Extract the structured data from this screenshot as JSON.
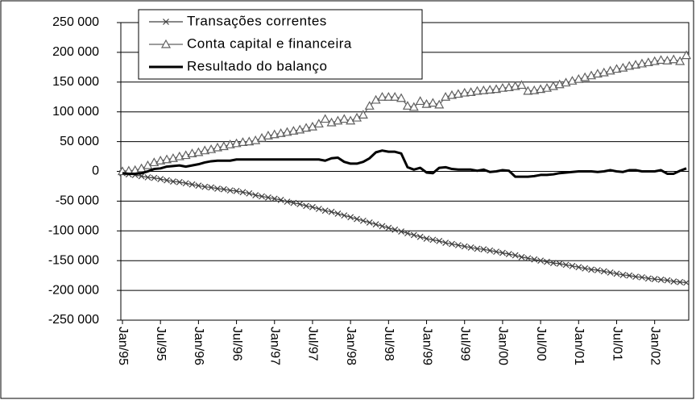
{
  "chart_data": {
    "type": "line",
    "categories": [
      "Jan/95",
      null,
      null,
      null,
      null,
      null,
      "Jul/95",
      null,
      null,
      null,
      null,
      null,
      "Jan/96",
      null,
      null,
      null,
      null,
      null,
      "Jul/96",
      null,
      null,
      null,
      null,
      null,
      "Jan/97",
      null,
      null,
      null,
      null,
      null,
      "Jul/97",
      null,
      null,
      null,
      null,
      null,
      "Jan/98",
      null,
      null,
      null,
      null,
      null,
      "Jul/98",
      null,
      null,
      null,
      null,
      null,
      "Jan/99",
      null,
      null,
      null,
      null,
      null,
      "Jul/99",
      null,
      null,
      null,
      null,
      null,
      "Jan/00",
      null,
      null,
      null,
      null,
      null,
      "Jul/00",
      null,
      null,
      null,
      null,
      null,
      "Jan/01",
      null,
      null,
      null,
      null,
      null,
      "Jul/01",
      null,
      null,
      null,
      null,
      null,
      "Jan/02",
      null,
      null,
      null,
      null,
      null
    ],
    "series": [
      {
        "name": "Transações correntes",
        "color": "#404040",
        "marker": "x",
        "values": [
          -3000,
          -5000,
          -6000,
          -8000,
          -10000,
          -11000,
          -13000,
          -15000,
          -17000,
          -18000,
          -20000,
          -22000,
          -24000,
          -26000,
          -27000,
          -29000,
          -30000,
          -32000,
          -33000,
          -35000,
          -37000,
          -40000,
          -42000,
          -44000,
          -46000,
          -48000,
          -51000,
          -53000,
          -55000,
          -58000,
          -60000,
          -63000,
          -66000,
          -68000,
          -71000,
          -74000,
          -77000,
          -80000,
          -83000,
          -86000,
          -89000,
          -92000,
          -95000,
          -98000,
          -101000,
          -104000,
          -107000,
          -110000,
          -113000,
          -115000,
          -117000,
          -120000,
          -122000,
          -124000,
          -126000,
          -128000,
          -130000,
          -131000,
          -133000,
          -135000,
          -137000,
          -139000,
          -141000,
          -144000,
          -146000,
          -148000,
          -150000,
          -152000,
          -154000,
          -155000,
          -157000,
          -159000,
          -161000,
          -163000,
          -165000,
          -166000,
          -168000,
          -170000,
          -172000,
          -174000,
          -175000,
          -177000,
          -178000,
          -180000,
          -181000,
          -182000,
          -183000,
          -185000,
          -186000,
          -187000
        ]
      },
      {
        "name": "Conta capital e financeira",
        "color": "#606060",
        "marker": "triangle",
        "values": [
          0,
          1000,
          2000,
          5000,
          10000,
          15000,
          18000,
          20000,
          22000,
          25000,
          27000,
          30000,
          32000,
          35000,
          37000,
          40000,
          42000,
          45000,
          47000,
          49000,
          50000,
          52000,
          56000,
          60000,
          62000,
          64000,
          66000,
          68000,
          70000,
          73000,
          75000,
          80000,
          88000,
          82000,
          85000,
          88000,
          85000,
          90000,
          95000,
          110000,
          120000,
          125000,
          125000,
          125000,
          123000,
          110000,
          108000,
          118000,
          113000,
          115000,
          112000,
          125000,
          128000,
          130000,
          132000,
          133000,
          135000,
          136000,
          137000,
          138000,
          140000,
          141000,
          143000,
          145000,
          135000,
          136000,
          138000,
          140000,
          143000,
          146000,
          149000,
          152000,
          155000,
          158000,
          161000,
          164000,
          166000,
          169000,
          172000,
          174000,
          177000,
          179000,
          181000,
          183000,
          185000,
          187000,
          186000,
          188000,
          185000,
          195000
        ]
      },
      {
        "name": "Resultado do balanço",
        "color": "#000000",
        "marker": "none",
        "values": [
          -3000,
          -4000,
          -4000,
          -3000,
          0,
          4000,
          5000,
          8000,
          9000,
          10000,
          8000,
          10000,
          12000,
          15000,
          17000,
          18000,
          18000,
          18000,
          20000,
          20000,
          20000,
          20000,
          20000,
          20000,
          20000,
          20000,
          20000,
          20000,
          20000,
          20000,
          20000,
          20000,
          18000,
          22000,
          23000,
          16000,
          13000,
          13000,
          16000,
          22000,
          32000,
          35000,
          33000,
          33000,
          30000,
          7000,
          3000,
          6000,
          -2000,
          -3000,
          6000,
          7000,
          4000,
          3000,
          3000,
          3000,
          1000,
          3000,
          -1000,
          0,
          2000,
          1000,
          -9000,
          -9000,
          -9000,
          -8000,
          -6000,
          -6000,
          -5000,
          -3000,
          -2000,
          -1000,
          0,
          0,
          0,
          -1000,
          0,
          2000,
          0,
          -1000,
          2000,
          2000,
          0,
          0,
          0,
          2000,
          -4000,
          -4000,
          1000,
          5000
        ]
      }
    ],
    "ylim": [
      -250000,
      250000
    ],
    "yticks": [
      {
        "value": -250000,
        "label": "-250 000"
      },
      {
        "value": -200000,
        "label": "-200 000"
      },
      {
        "value": -150000,
        "label": "-150 000"
      },
      {
        "value": -100000,
        "label": "-100 000"
      },
      {
        "value": -50000,
        "label": "-50 000"
      },
      0,
      {
        "value": 50000,
        "label": "50 000"
      },
      {
        "value": 100000,
        "label": "100 000"
      },
      {
        "value": 150000,
        "label": "150 000"
      },
      {
        "value": 200000,
        "label": "200 000"
      },
      {
        "value": 250000,
        "label": "250 000"
      }
    ],
    "grid": true
  }
}
